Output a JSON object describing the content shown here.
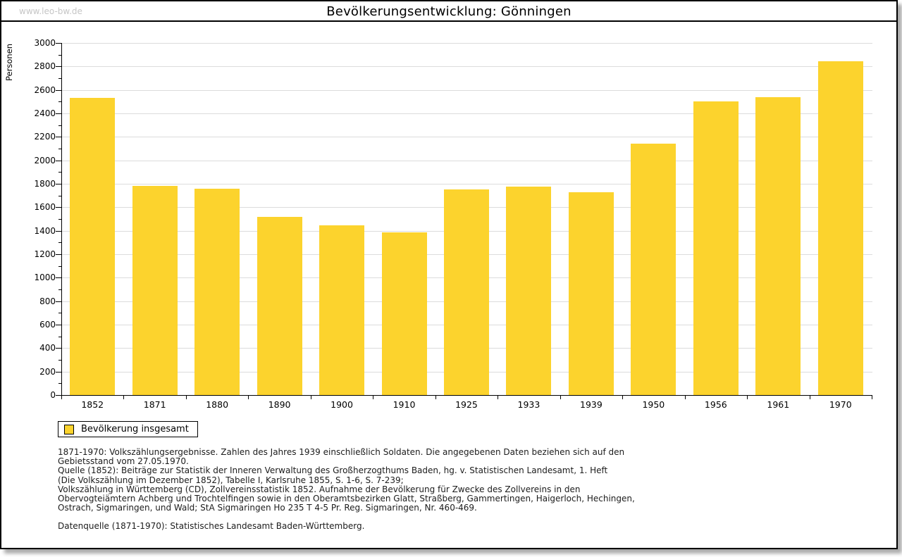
{
  "page": {
    "watermark": "www.leo-bw.de",
    "title": "Bevölkerungsentwicklung: Gönningen"
  },
  "chart_data": {
    "type": "bar",
    "title": "Bevölkerungsentwicklung: Gönningen",
    "ylabel": "Personen",
    "xlabel": "",
    "categories": [
      "1852",
      "1871",
      "1880",
      "1890",
      "1900",
      "1910",
      "1925",
      "1933",
      "1939",
      "1950",
      "1956",
      "1961",
      "1970"
    ],
    "values": [
      2532,
      1780,
      1756,
      1520,
      1444,
      1385,
      1750,
      1778,
      1730,
      2140,
      2500,
      2540,
      2845
    ],
    "ylim": [
      0,
      3000
    ],
    "ytick_step": 200,
    "yminor_step": 100,
    "grid": true,
    "bar_color": "#FCD32D",
    "grid_color": "#dcdcdc",
    "legend": {
      "label": "Bevölkerung insgesamt",
      "position": "bottom-left"
    }
  },
  "footnotes": {
    "lines": [
      "1871-1970: Volkszählungsergebnisse. Zahlen des Jahres 1939 einschließlich Soldaten. Die angegebenen Daten beziehen sich auf den",
      "Gebietsstand vom 27.05.1970.",
      "Quelle (1852): Beiträge zur Statistik der Inneren Verwaltung des Großherzogthums Baden, hg. v. Statistischen Landesamt, 1. Heft",
      "(Die Volkszählung im Dezember 1852), Tabelle I, Karlsruhe 1855, S. 1-6, S. 7-239;",
      "Volkszählung in Württemberg (CD), Zollvereinsstatistik 1852. Aufnahme der Bevölkerung für Zwecke des Zollvereins in den",
      "Obervogteiämtern Achberg und Trochtelfingen sowie in den Oberamtsbezirken Glatt, Straßberg, Gammertingen, Haigerloch, Hechingen,",
      "Ostrach, Sigmaringen, und Wald; StA Sigmaringen Ho 235 T 4-5 Pr. Reg. Sigmaringen, Nr. 460-469."
    ],
    "datasource": "Datenquelle (1871-1970): Statistisches Landesamt Baden-Württemberg."
  }
}
